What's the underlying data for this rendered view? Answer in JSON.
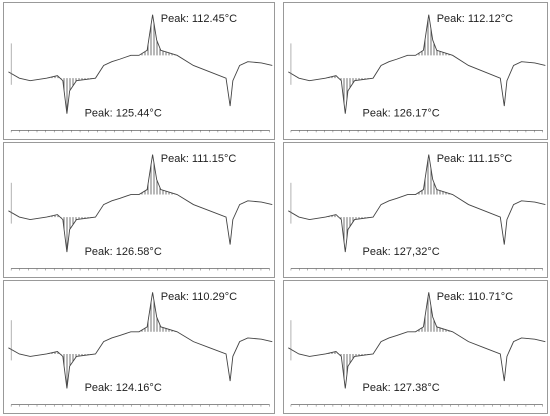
{
  "panels": [
    {
      "peak_top": "Peak: 112.45°C",
      "peak_bottom": "Peak: 125.44°C"
    },
    {
      "peak_top": "Peak: 112.12°C",
      "peak_bottom": "Peak: 126.17°C"
    },
    {
      "peak_top": "Peak: 111.15°C",
      "peak_bottom": "Peak: 126.58°C"
    },
    {
      "peak_top": "Peak: 111.15°C",
      "peak_bottom": "Peak: 127,32°C"
    },
    {
      "peak_top": "Peak: 110.29°C",
      "peak_bottom": "Peak: 124.16°C"
    },
    {
      "peak_top": "Peak: 110.71°C",
      "peak_bottom": "Peak: 127.38°C"
    }
  ]
}
